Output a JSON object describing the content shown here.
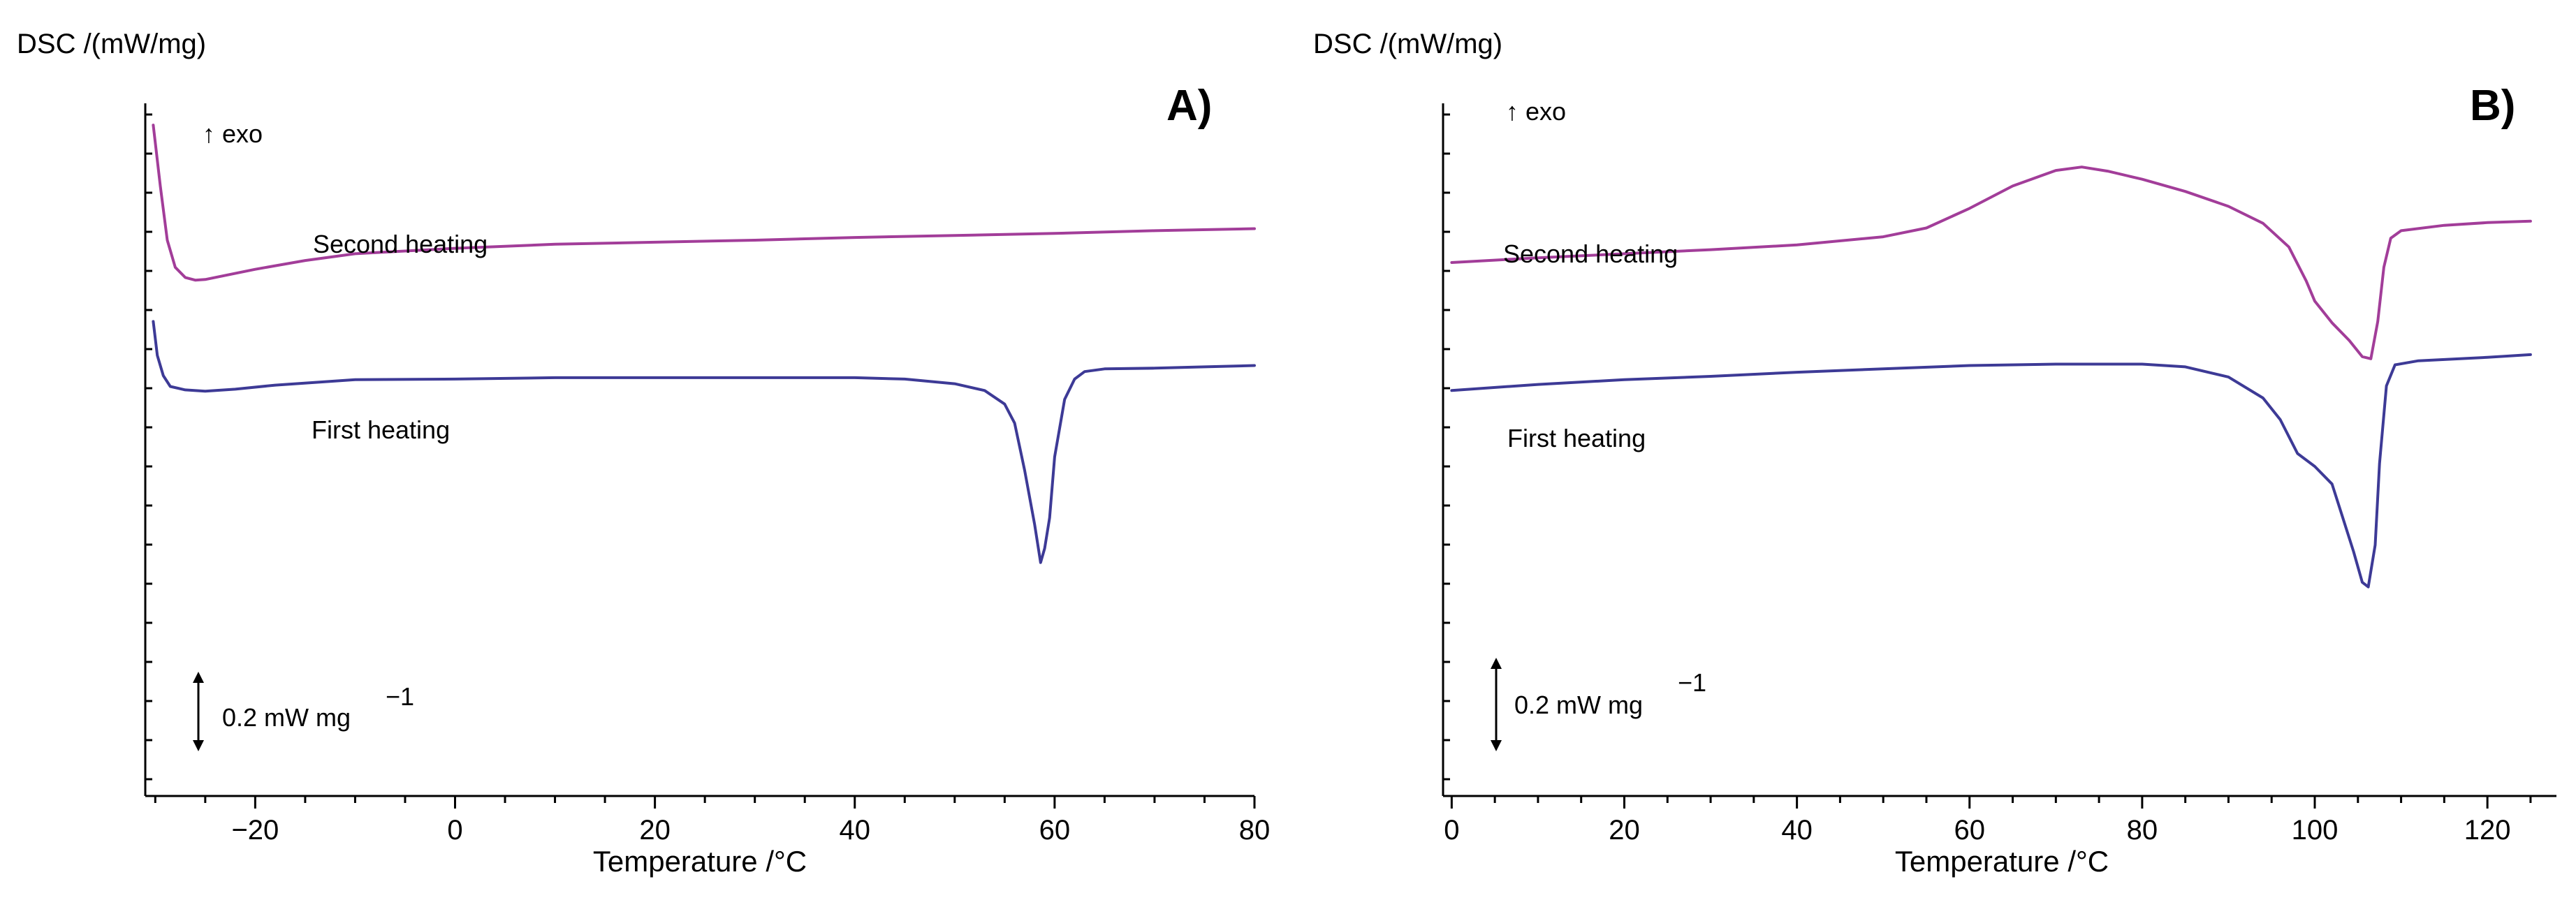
{
  "chart_data": [
    {
      "panel": "A)",
      "type": "line",
      "ylabel": "DSC /(mW/mg)",
      "xlabel": "Temperature /°C",
      "xlim": [
        -31,
        80
      ],
      "xticks": [
        -20,
        0,
        20,
        40,
        60,
        80
      ],
      "xtick_labels": [
        "−20",
        "0",
        "20",
        "40",
        "60",
        "80"
      ],
      "ylim": [
        0,
        100
      ],
      "y_units": "relative",
      "exo_label": "↑ exo",
      "scale_bar": {
        "label": "0.2 mW mg",
        "exponent": "−1"
      },
      "grid": false,
      "series": [
        {
          "name": "Second heating",
          "color": "#a23d99",
          "points": [
            [
              -30.2,
              97
            ],
            [
              -29.5,
              88
            ],
            [
              -28.8,
              80
            ],
            [
              -28,
              76
            ],
            [
              -27,
              74.5
            ],
            [
              -26,
              74.1
            ],
            [
              -25,
              74.2
            ],
            [
              -23,
              74.8
            ],
            [
              -20,
              75.7
            ],
            [
              -15,
              77
            ],
            [
              -10,
              78
            ],
            [
              -5,
              78.4
            ],
            [
              0,
              78.8
            ],
            [
              10,
              79.4
            ],
            [
              20,
              79.7
            ],
            [
              30,
              80
            ],
            [
              40,
              80.4
            ],
            [
              50,
              80.7
            ],
            [
              60,
              81
            ],
            [
              70,
              81.4
            ],
            [
              80,
              81.7
            ]
          ]
        },
        {
          "name": "First heating",
          "color": "#3d3a96",
          "points": [
            [
              -30.2,
              68
            ],
            [
              -29.8,
              63
            ],
            [
              -29.2,
              60
            ],
            [
              -28.5,
              58.4
            ],
            [
              -27,
              57.9
            ],
            [
              -25,
              57.7
            ],
            [
              -22,
              58
            ],
            [
              -18,
              58.6
            ],
            [
              -10,
              59.4
            ],
            [
              0,
              59.5
            ],
            [
              10,
              59.7
            ],
            [
              20,
              59.7
            ],
            [
              30,
              59.7
            ],
            [
              40,
              59.7
            ],
            [
              45,
              59.5
            ],
            [
              50,
              58.8
            ],
            [
              53,
              57.8
            ],
            [
              55,
              55.8
            ],
            [
              56,
              53
            ],
            [
              57,
              46
            ],
            [
              58,
              38
            ],
            [
              58.6,
              32.4
            ],
            [
              59,
              34.5
            ],
            [
              59.5,
              39
            ],
            [
              60,
              48
            ],
            [
              61,
              56.5
            ],
            [
              62,
              59.5
            ],
            [
              63,
              60.6
            ],
            [
              65,
              61
            ],
            [
              70,
              61.1
            ],
            [
              75,
              61.3
            ],
            [
              80,
              61.5
            ]
          ]
        }
      ]
    },
    {
      "panel": "B)",
      "type": "line",
      "ylabel": "DSC /(mW/mg)",
      "xlabel": "Temperature /°C",
      "xlim": [
        -1,
        128
      ],
      "xticks": [
        0,
        20,
        40,
        60,
        80,
        100,
        120
      ],
      "xtick_labels": [
        "0",
        "20",
        "40",
        "60",
        "80",
        "100",
        "120"
      ],
      "ylim": [
        0,
        100
      ],
      "y_units": "relative",
      "exo_label": "↑ exo",
      "scale_bar": {
        "label": "0.2 mW mg",
        "exponent": "−1"
      },
      "grid": false,
      "series": [
        {
          "name": "Second heating",
          "color": "#a23d99",
          "points": [
            [
              0,
              76.7
            ],
            [
              10,
              77.4
            ],
            [
              20,
              78
            ],
            [
              30,
              78.6
            ],
            [
              40,
              79.3
            ],
            [
              50,
              80.5
            ],
            [
              55,
              81.8
            ],
            [
              60,
              84.7
            ],
            [
              65,
              88
            ],
            [
              70,
              90.3
            ],
            [
              73,
              90.8
            ],
            [
              76,
              90.2
            ],
            [
              80,
              89
            ],
            [
              85,
              87.2
            ],
            [
              90,
              85
            ],
            [
              94,
              82.5
            ],
            [
              97,
              79
            ],
            [
              99,
              74
            ],
            [
              100,
              71
            ],
            [
              102,
              67.8
            ],
            [
              104,
              65.2
            ],
            [
              105.5,
              62.8
            ],
            [
              106.5,
              62.5
            ],
            [
              107.3,
              68
            ],
            [
              108,
              76
            ],
            [
              108.8,
              80.3
            ],
            [
              110,
              81.4
            ],
            [
              115,
              82.2
            ],
            [
              120,
              82.6
            ],
            [
              125,
              82.8
            ]
          ]
        },
        {
          "name": "First heating",
          "color": "#3d3a96",
          "points": [
            [
              0,
              57.8
            ],
            [
              10,
              58.7
            ],
            [
              20,
              59.4
            ],
            [
              30,
              59.9
            ],
            [
              40,
              60.5
            ],
            [
              50,
              61
            ],
            [
              60,
              61.5
            ],
            [
              70,
              61.7
            ],
            [
              80,
              61.7
            ],
            [
              85,
              61.3
            ],
            [
              90,
              59.8
            ],
            [
              94,
              56.7
            ],
            [
              96,
              53.5
            ],
            [
              98,
              48.5
            ],
            [
              100,
              46.6
            ],
            [
              102,
              44
            ],
            [
              103,
              40
            ],
            [
              104.5,
              34
            ],
            [
              105.5,
              29.5
            ],
            [
              106.2,
              28.8
            ],
            [
              107,
              35
            ],
            [
              107.5,
              47
            ],
            [
              108.3,
              58.5
            ],
            [
              109.3,
              61.6
            ],
            [
              112,
              62.2
            ],
            [
              120,
              62.7
            ],
            [
              125,
              63.1
            ]
          ]
        }
      ]
    }
  ]
}
